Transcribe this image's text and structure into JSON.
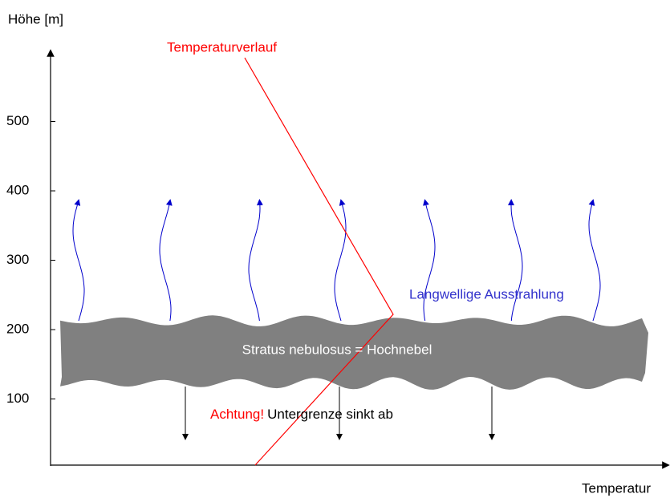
{
  "y_axis_label": "Höhe [m]",
  "x_axis_label": "Temperatur",
  "y_ticks": [
    100,
    200,
    300,
    400,
    500
  ],
  "temperature_label": "Temperaturverlauf",
  "cloud_label": "Stratus nebulosus = Hochnebel",
  "radiation_label": "Langwellige Ausstrahlung",
  "warning": {
    "prefix": "Achtung!",
    "text": "Untergrenze sinkt ab"
  }
}
